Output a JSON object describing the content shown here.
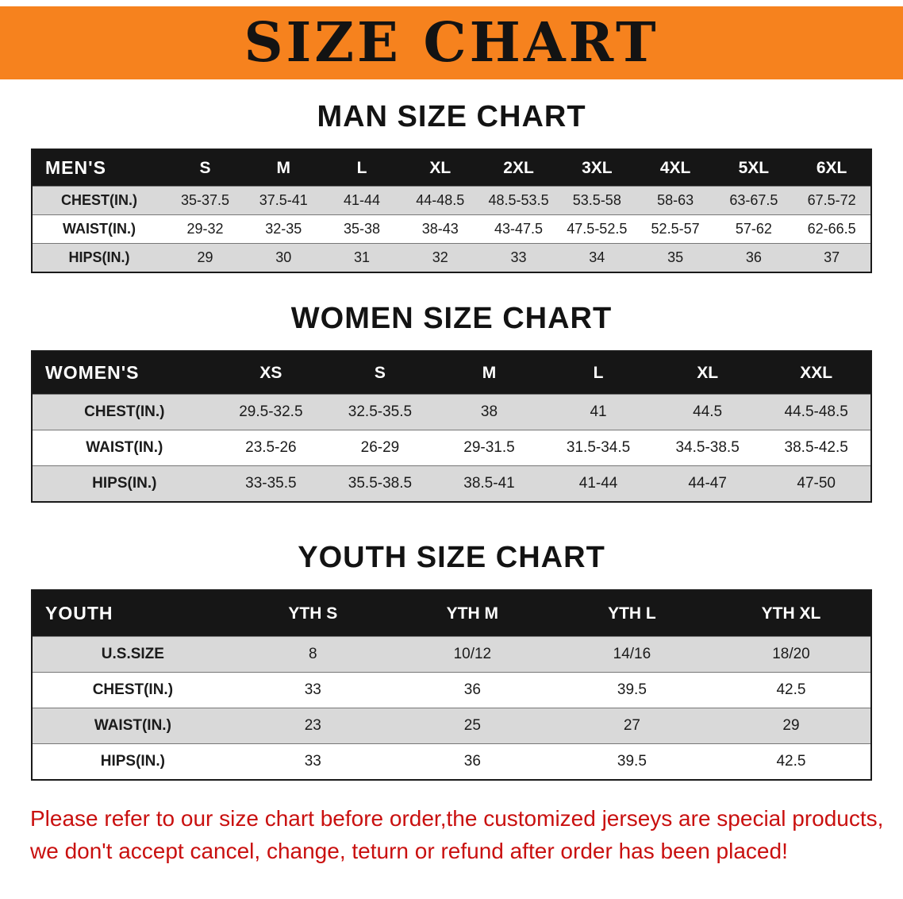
{
  "banner": {
    "title": "SIZE CHART"
  },
  "colors": {
    "banner_orange": "#f6821e",
    "table_header_black": "#161616",
    "row_gray": "#d9d9d9",
    "disclaimer_red": "#c9100f"
  },
  "sections": [
    {
      "heading": "MAN SIZE CHART",
      "table": {
        "header": [
          "MEN'S",
          "S",
          "M",
          "L",
          "XL",
          "2XL",
          "3XL",
          "4XL",
          "5XL",
          "6XL"
        ],
        "rows": [
          {
            "label": "CHEST(IN.)",
            "values": [
              "35-37.5",
              "37.5-41",
              "41-44",
              "44-48.5",
              "48.5-53.5",
              "53.5-58",
              "58-63",
              "63-67.5",
              "67.5-72"
            ]
          },
          {
            "label": "WAIST(IN.)",
            "values": [
              "29-32",
              "32-35",
              "35-38",
              "38-43",
              "43-47.5",
              "47.5-52.5",
              "52.5-57",
              "57-62",
              "62-66.5"
            ]
          },
          {
            "label": "HIPS(IN.)",
            "values": [
              "29",
              "30",
              "31",
              "32",
              "33",
              "34",
              "35",
              "36",
              "37"
            ]
          }
        ]
      }
    },
    {
      "heading": "WOMEN SIZE CHART",
      "table": {
        "header": [
          "WOMEN'S",
          "XS",
          "S",
          "M",
          "L",
          "XL",
          "XXL"
        ],
        "rows": [
          {
            "label": "CHEST(IN.)",
            "values": [
              "29.5-32.5",
              "32.5-35.5",
              "38",
              "41",
              "44.5",
              "44.5-48.5"
            ]
          },
          {
            "label": "WAIST(IN.)",
            "values": [
              "23.5-26",
              "26-29",
              "29-31.5",
              "31.5-34.5",
              "34.5-38.5",
              "38.5-42.5"
            ]
          },
          {
            "label": "HIPS(IN.)",
            "values": [
              "33-35.5",
              "35.5-38.5",
              "38.5-41",
              "41-44",
              "44-47",
              "47-50"
            ]
          }
        ]
      }
    },
    {
      "heading": "YOUTH SIZE CHART",
      "table": {
        "header": [
          "YOUTH",
          "YTH S",
          "YTH M",
          "YTH L",
          "YTH XL"
        ],
        "rows": [
          {
            "label": "U.S.SIZE",
            "values": [
              "8",
              "10/12",
              "14/16",
              "18/20"
            ]
          },
          {
            "label": "CHEST(IN.)",
            "values": [
              "33",
              "36",
              "39.5",
              "42.5"
            ]
          },
          {
            "label": "WAIST(IN.)",
            "values": [
              "23",
              "25",
              "27",
              "29"
            ]
          },
          {
            "label": "HIPS(IN.)",
            "values": [
              "33",
              "36",
              "39.5",
              "42.5"
            ]
          }
        ]
      }
    }
  ],
  "disclaimer": {
    "line1": "Please refer to our size chart before order,the customized jerseys are special products,",
    "line2": "we don't accept cancel, change, teturn or refund after order has been placed!"
  }
}
